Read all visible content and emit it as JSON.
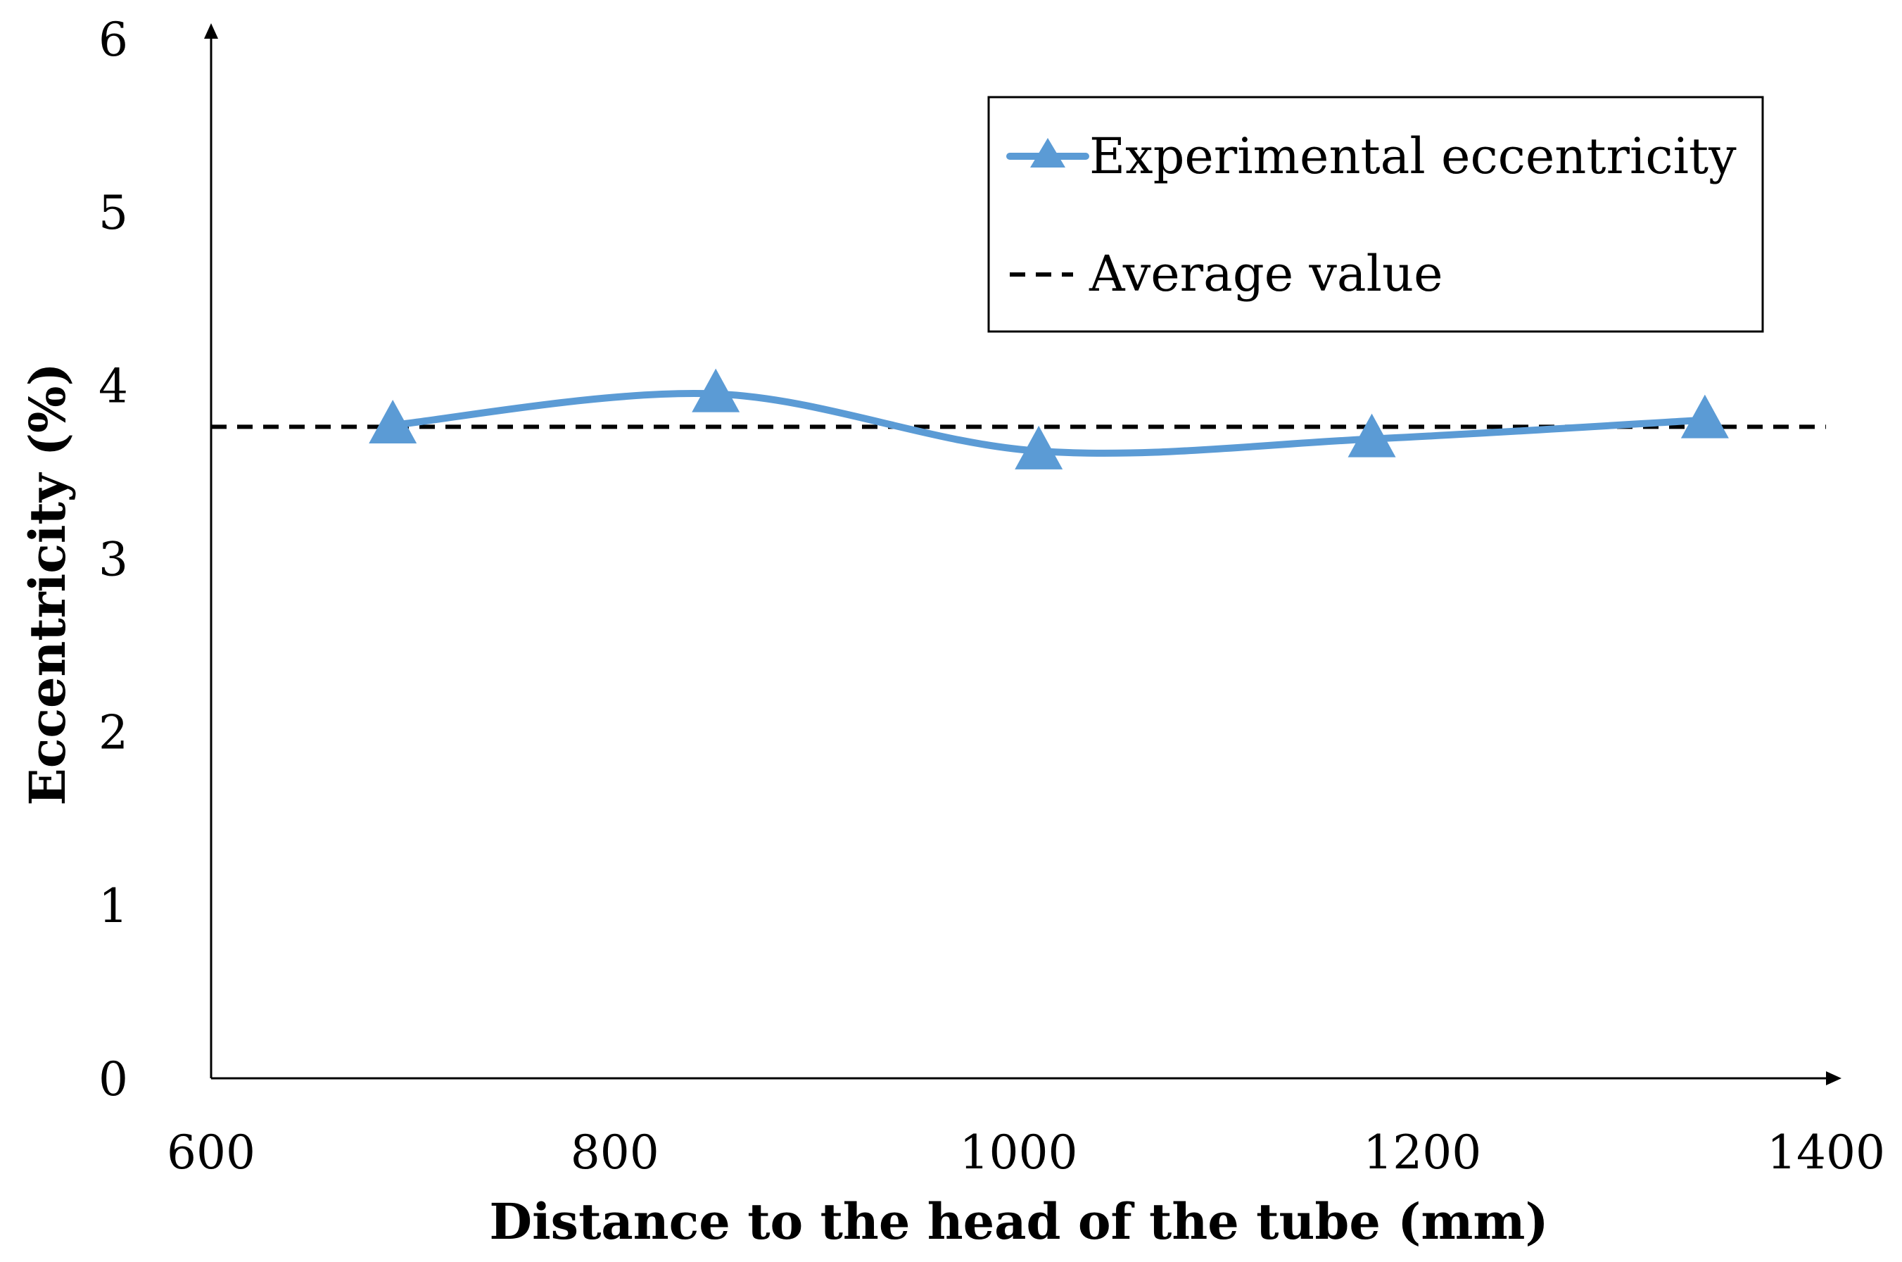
{
  "chart_data": {
    "type": "line",
    "title": "",
    "xlabel": "Distance to the head of the tube (mm)",
    "ylabel": "Eccentricity (%)",
    "xlim": [
      600,
      1400
    ],
    "ylim": [
      0,
      6
    ],
    "xticks": [
      600,
      800,
      1000,
      1200,
      1400
    ],
    "yticks": [
      0,
      1,
      2,
      3,
      4,
      5,
      6
    ],
    "grid": false,
    "legend_position": "top-right",
    "series": [
      {
        "name": "Experimental eccentricity",
        "x": [
          690,
          850,
          1010,
          1175,
          1340
        ],
        "y": [
          3.77,
          3.95,
          3.62,
          3.69,
          3.8
        ],
        "color": "#5B9BD5",
        "marker": "triangle",
        "smooth": true
      },
      {
        "name": "Average value",
        "x": [
          600,
          1400
        ],
        "y": [
          3.76,
          3.76
        ],
        "color": "#000000",
        "linestyle": "dashed"
      }
    ]
  }
}
